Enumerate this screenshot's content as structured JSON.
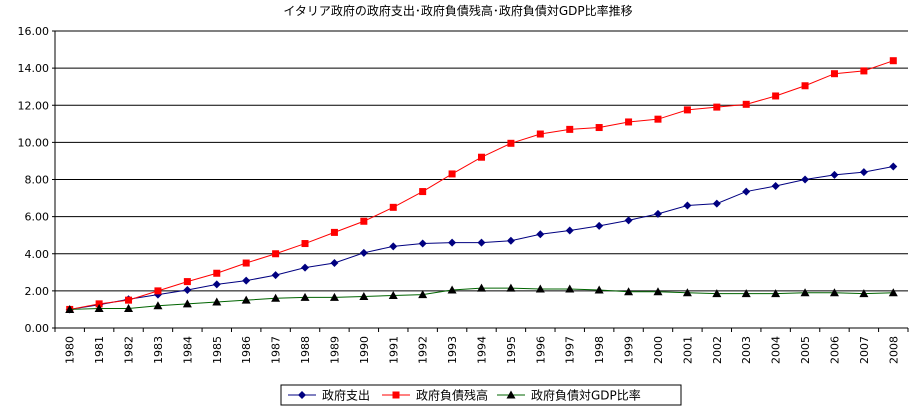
{
  "chart_data": {
    "type": "line",
    "title": "イタリア政府の政府支出･政府負債残高･政府負債対GDP比率推移",
    "xlabel": "",
    "ylabel": "",
    "ylim": [
      0,
      16
    ],
    "y_ticks": [
      "0.00",
      "2.00",
      "4.00",
      "6.00",
      "8.00",
      "10.00",
      "12.00",
      "14.00",
      "16.00"
    ],
    "categories": [
      "1980",
      "1981",
      "1982",
      "1983",
      "1984",
      "1985",
      "1986",
      "1987",
      "1988",
      "1989",
      "1990",
      "1991",
      "1992",
      "1993",
      "1994",
      "1995",
      "1996",
      "1997",
      "1998",
      "1999",
      "2000",
      "2001",
      "2002",
      "2003",
      "2004",
      "2005",
      "2006",
      "2007",
      "2008"
    ],
    "grid": "horizontal",
    "legend_position": "bottom",
    "series": [
      {
        "name": "政府支出",
        "color": "#000080",
        "marker": "diamond",
        "values": [
          1.0,
          1.25,
          1.55,
          1.8,
          2.05,
          2.35,
          2.55,
          2.85,
          3.25,
          3.5,
          4.05,
          4.4,
          4.55,
          4.6,
          4.6,
          4.7,
          5.05,
          5.25,
          5.5,
          5.8,
          6.15,
          6.6,
          6.7,
          7.35,
          7.65,
          8.0,
          8.25,
          8.4,
          8.7
        ]
      },
      {
        "name": "政府負債残高",
        "color": "#ff0000",
        "marker": "square",
        "values": [
          1.0,
          1.3,
          1.5,
          2.0,
          2.5,
          2.95,
          3.5,
          4.0,
          4.55,
          5.15,
          5.75,
          6.5,
          7.35,
          8.3,
          9.2,
          9.95,
          10.45,
          10.7,
          10.8,
          11.1,
          11.25,
          11.75,
          11.9,
          12.05,
          12.5,
          13.05,
          13.7,
          13.85,
          14.4
        ]
      },
      {
        "name": "政府負債対GDP比率",
        "color": "#006400",
        "marker": "triangle",
        "values": [
          1.0,
          1.05,
          1.05,
          1.2,
          1.3,
          1.4,
          1.5,
          1.6,
          1.65,
          1.65,
          1.7,
          1.75,
          1.8,
          2.05,
          2.15,
          2.15,
          2.1,
          2.1,
          2.05,
          1.95,
          1.95,
          1.9,
          1.85,
          1.85,
          1.85,
          1.9,
          1.9,
          1.85,
          1.9
        ]
      }
    ]
  }
}
